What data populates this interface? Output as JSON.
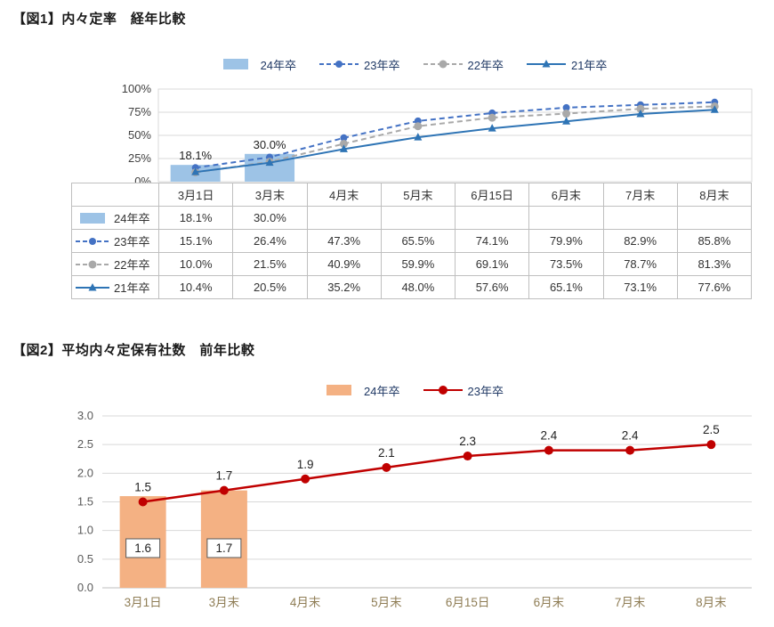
{
  "chart_data": [
    {
      "id": "fig1",
      "type": "bar+line",
      "title": "【図1】内々定率　経年比較",
      "categories": [
        "3月1日",
        "3月末",
        "4月末",
        "5月末",
        "6月15日",
        "6月末",
        "7月末",
        "8月末"
      ],
      "ylim": [
        0,
        100
      ],
      "ytick_step": 25,
      "ytick_labels": [
        "0%",
        "25%",
        "50%",
        "75%",
        "100%"
      ],
      "grid": true,
      "legend_position": "top",
      "series": [
        {
          "name": "24年卒",
          "type": "bar",
          "color": "#9DC3E6",
          "values": [
            18.1,
            30.0,
            null,
            null,
            null,
            null,
            null,
            null
          ],
          "point_labels": [
            "18.1%",
            "30.0%",
            "",
            "",
            "",
            "",
            "",
            ""
          ]
        },
        {
          "name": "23年卒",
          "type": "line",
          "dash": "dashed",
          "color": "#4472C4",
          "marker": "circle",
          "marker_size": 4,
          "values": [
            15.1,
            26.4,
            47.3,
            65.5,
            74.1,
            79.9,
            82.9,
            85.8
          ]
        },
        {
          "name": "22年卒",
          "type": "line",
          "dash": "dashed",
          "color": "#A9A9A9",
          "marker": "circle",
          "marker_size": 4.5,
          "values": [
            10.0,
            21.5,
            40.9,
            59.9,
            69.1,
            73.5,
            78.7,
            81.3
          ]
        },
        {
          "name": "21年卒",
          "type": "line",
          "dash": "solid",
          "color": "#2E74B5",
          "marker": "triangle",
          "marker_size": 4.5,
          "values": [
            10.4,
            20.5,
            35.2,
            48.0,
            57.6,
            65.1,
            73.1,
            77.6
          ]
        }
      ],
      "data_table": {
        "rows": [
          {
            "label": "24年卒",
            "cells": [
              "18.1%",
              "30.0%",
              "",
              "",
              "",
              "",
              "",
              ""
            ]
          },
          {
            "label": "23年卒",
            "cells": [
              "15.1%",
              "26.4%",
              "47.3%",
              "65.5%",
              "74.1%",
              "79.9%",
              "82.9%",
              "85.8%"
            ]
          },
          {
            "label": "22年卒",
            "cells": [
              "10.0%",
              "21.5%",
              "40.9%",
              "59.9%",
              "69.1%",
              "73.5%",
              "78.7%",
              "81.3%"
            ]
          },
          {
            "label": "21年卒",
            "cells": [
              "10.4%",
              "20.5%",
              "35.2%",
              "48.0%",
              "57.6%",
              "65.1%",
              "73.1%",
              "77.6%"
            ]
          }
        ]
      }
    },
    {
      "id": "fig2",
      "type": "bar+line",
      "title": "【図2】平均内々定保有社数　前年比較",
      "categories": [
        "3月1日",
        "3月末",
        "4月末",
        "5月末",
        "6月15日",
        "6月末",
        "7月末",
        "8月末"
      ],
      "ylim": [
        0,
        3.0
      ],
      "ytick_step": 0.5,
      "ytick_labels": [
        "0.0",
        "0.5",
        "1.0",
        "1.5",
        "2.0",
        "2.5",
        "3.0"
      ],
      "grid": true,
      "legend_position": "top",
      "series": [
        {
          "name": "24年卒",
          "type": "bar",
          "color": "#F4B183",
          "values": [
            1.6,
            1.7,
            null,
            null,
            null,
            null,
            null,
            null
          ],
          "point_labels": [
            "1.6",
            "1.7",
            "",
            "",
            "",
            "",
            "",
            ""
          ]
        },
        {
          "name": "23年卒",
          "type": "line",
          "dash": "solid",
          "color": "#C00000",
          "marker": "circle",
          "marker_size": 5,
          "values": [
            1.5,
            1.7,
            1.9,
            2.1,
            2.3,
            2.4,
            2.4,
            2.5
          ],
          "point_labels": [
            "1.5",
            "1.7",
            "1.9",
            "2.1",
            "2.3",
            "2.4",
            "2.4",
            "2.5"
          ]
        }
      ]
    }
  ],
  "colors": {
    "bar_fig1": "#9DC3E6",
    "line_23": "#4472C4",
    "line_22": "#A9A9A9",
    "line_21": "#2E74B5",
    "bar_fig2": "#F4B183",
    "line_fig2": "#C00000",
    "grid": "#D9D9D9",
    "table_border": "#BFBFBF",
    "legend_text": "#1F3864",
    "axis_text": "#595959",
    "fig2_xlabel_text": "#8F7D55"
  }
}
